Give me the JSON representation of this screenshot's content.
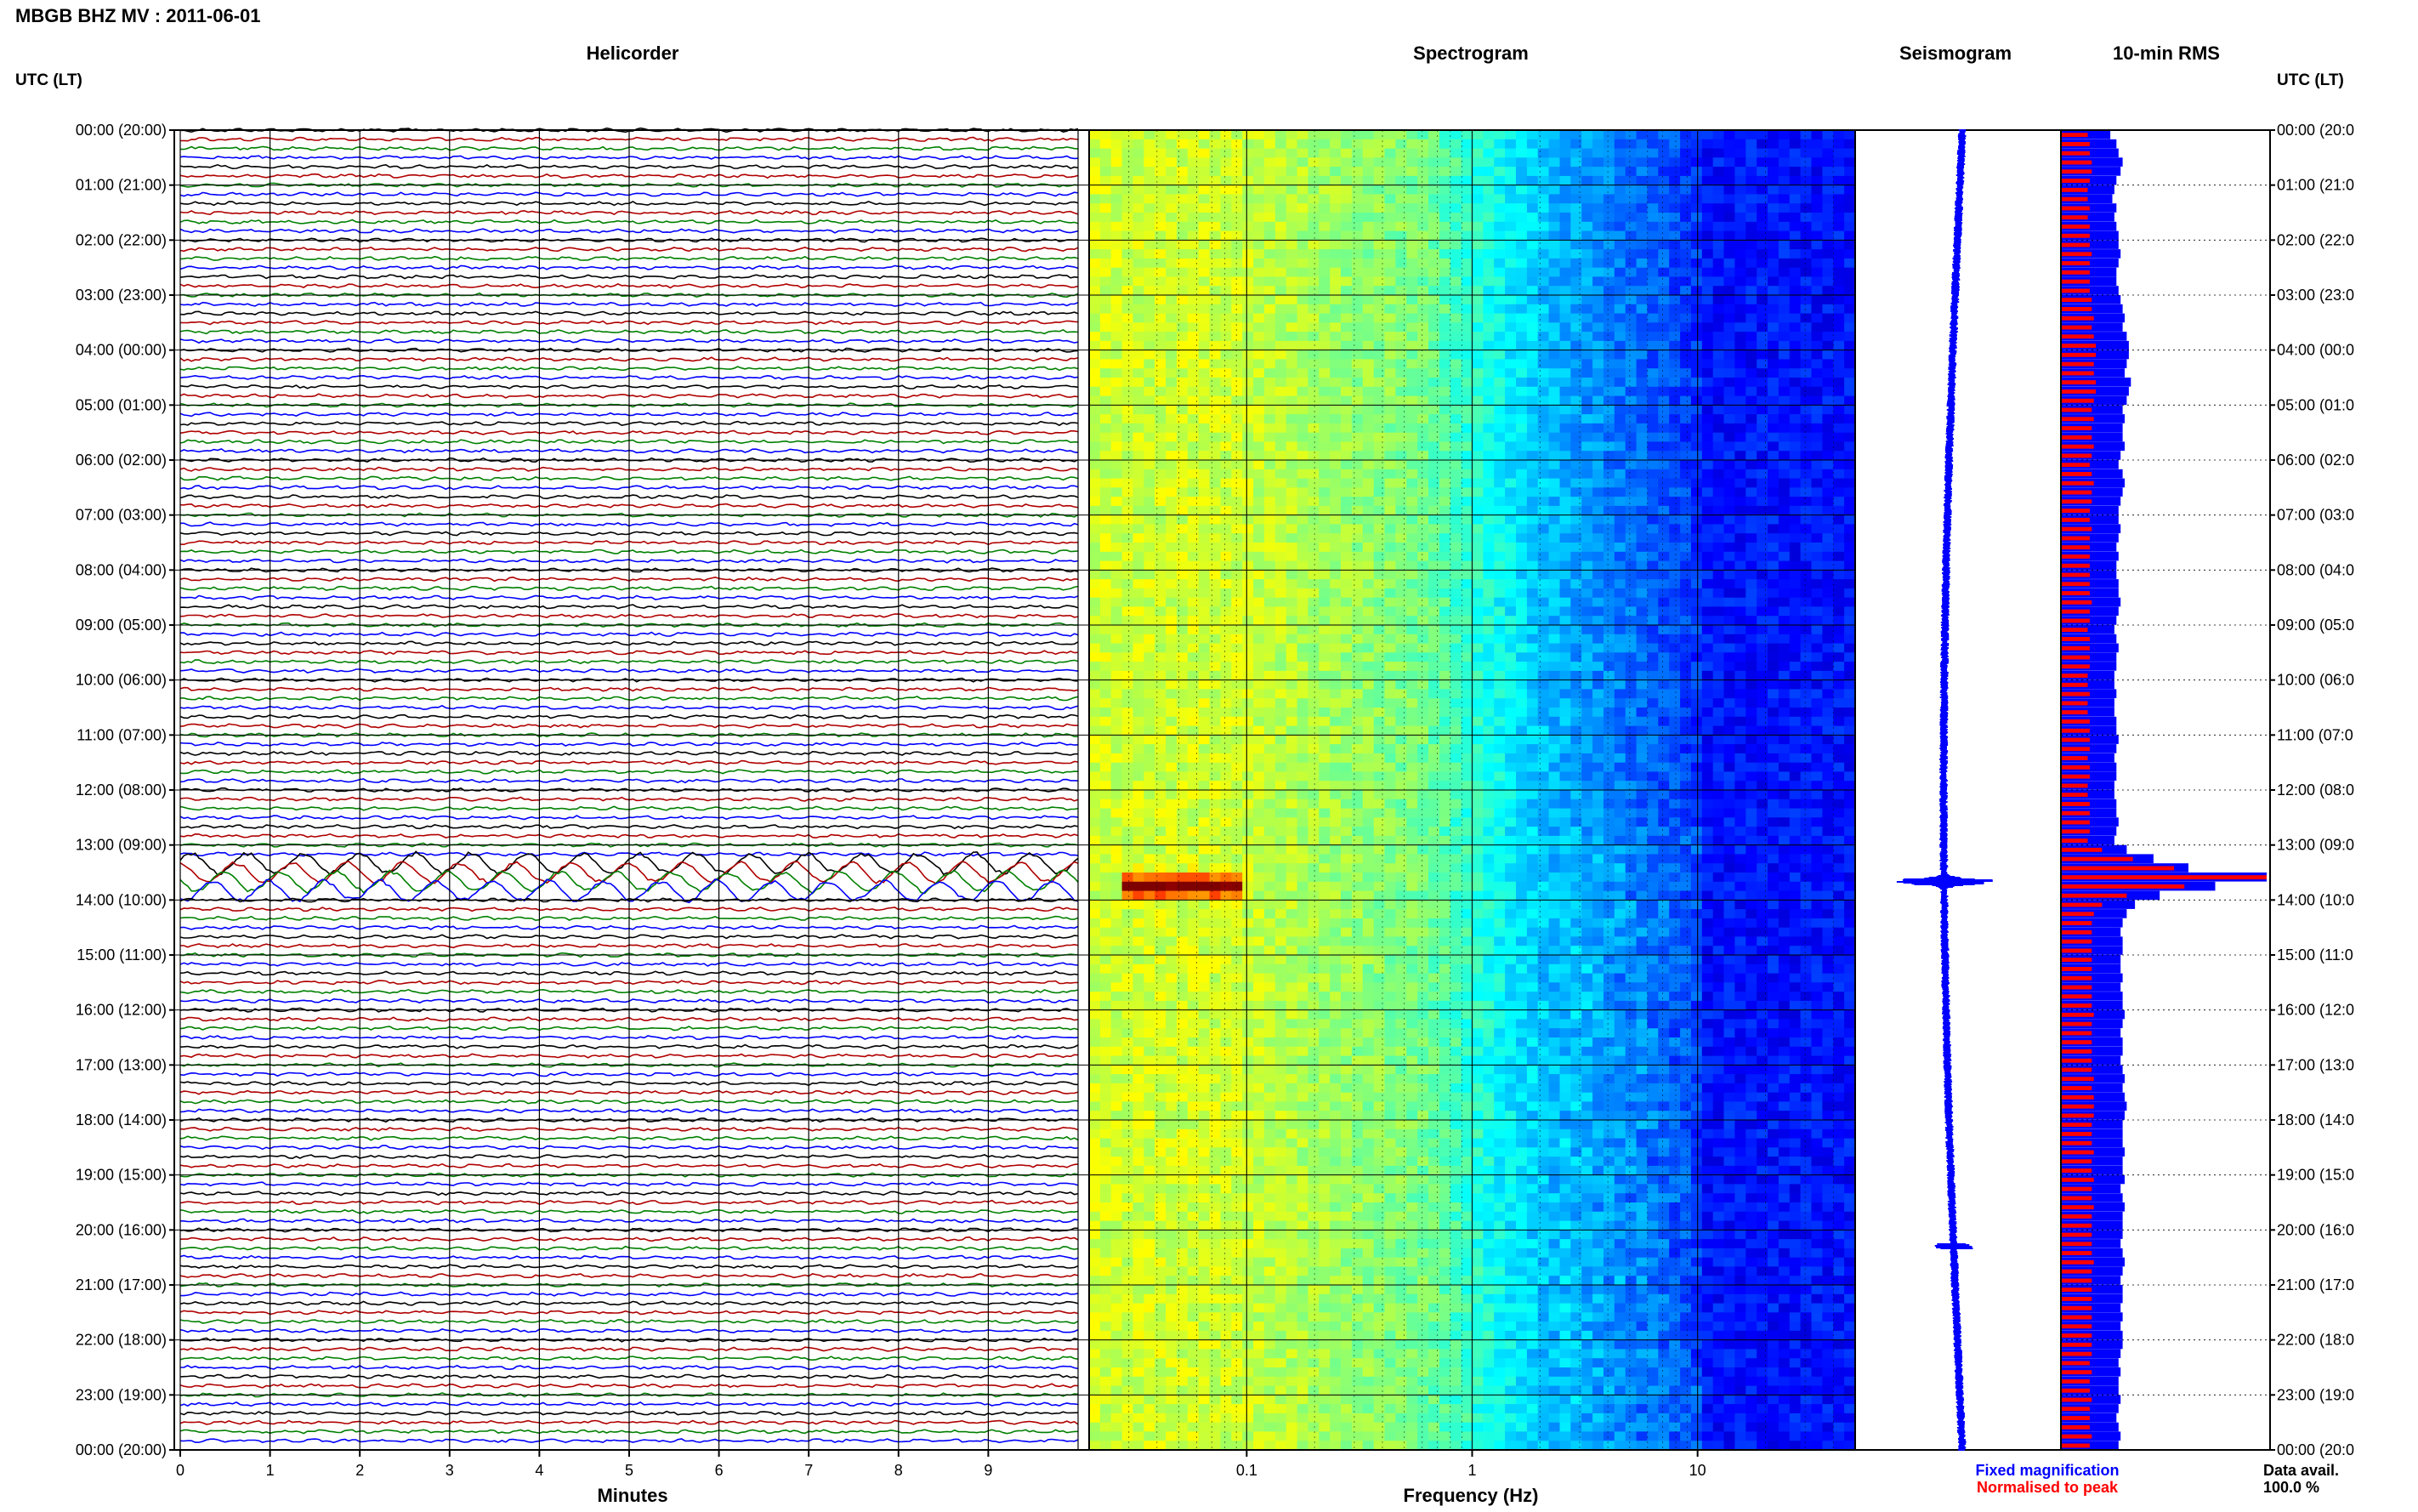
{
  "title": "MBGB BHZ MV : 2011-06-01",
  "panels": {
    "helicorder": "Helicorder",
    "spectrogram": "Spectrogram",
    "seismogram": "Seismogram",
    "rms": "10-min RMS"
  },
  "axis_header_left": "UTC (LT)",
  "axis_header_right": "UTC (LT)",
  "xlabel_helicorder": "Minutes",
  "xlabel_spectrogram": "Frequency (Hz)",
  "legend": {
    "fixed": "Fixed magnification",
    "normalised": "Normalised to peak",
    "fixed_color": "#0000ff",
    "normalised_color": "#ff0000"
  },
  "data_avail_label": "Data avail.",
  "data_avail_value": "100.0 %",
  "chart_data": {
    "type": "helicorder",
    "time_labels": [
      "00:00 (20:00)",
      "01:00 (21:00)",
      "02:00 (22:00)",
      "03:00 (23:00)",
      "04:00 (00:00)",
      "05:00 (01:00)",
      "06:00 (02:00)",
      "07:00 (03:00)",
      "08:00 (04:00)",
      "09:00 (05:00)",
      "10:00 (06:00)",
      "11:00 (07:00)",
      "12:00 (08:00)",
      "13:00 (09:00)",
      "14:00 (10:00)",
      "15:00 (11:00)",
      "16:00 (12:00)",
      "17:00 (13:00)",
      "18:00 (14:00)",
      "19:00 (15:00)",
      "20:00 (16:00)",
      "21:00 (17:00)",
      "22:00 (18:00)",
      "23:00 (19:00)",
      "00:00 (20:00)"
    ],
    "time_labels_right": [
      "00:00 (20:0",
      "01:00 (21:0",
      "02:00 (22:0",
      "03:00 (23:0",
      "04:00 (00:0",
      "05:00 (01:0",
      "06:00 (02:0",
      "07:00 (03:0",
      "08:00 (04:0",
      "09:00 (05:0",
      "10:00 (06:0",
      "11:00 (07:0",
      "12:00 (08:0",
      "13:00 (09:0",
      "14:00 (10:0",
      "15:00 (11:0",
      "16:00 (12:0",
      "17:00 (13:0",
      "18:00 (14:0",
      "19:00 (15:0",
      "20:00 (16:0",
      "21:00 (17:0",
      "22:00 (18:0",
      "23:00 (19:0",
      "00:00 (20:0"
    ],
    "minutes_ticks": [
      "0",
      "1",
      "2",
      "3",
      "4",
      "5",
      "6",
      "7",
      "8",
      "9"
    ],
    "minutes_range": [
      0,
      10
    ],
    "freq_ticks": [
      "0.1",
      "1",
      "10"
    ],
    "freq_range": [
      0.02,
      50
    ],
    "freq_scale": "log",
    "traces_per_hour": 6,
    "trace_colors": [
      "#000000",
      "#b00000",
      "#008000",
      "#0000ff"
    ],
    "hours": 24,
    "event_time_utc": "13:40",
    "rms_series": [
      {
        "name": "Fixed magnification",
        "color": "#0000ff"
      },
      {
        "name": "Normalised to peak",
        "color": "#ff0000"
      }
    ],
    "rms_fixed": [
      0.24,
      0.27,
      0.28,
      0.3,
      0.29,
      0.27,
      0.26,
      0.25,
      0.27,
      0.26,
      0.27,
      0.28,
      0.28,
      0.29,
      0.28,
      0.27,
      0.27,
      0.28,
      0.29,
      0.3,
      0.31,
      0.3,
      0.32,
      0.33,
      0.33,
      0.32,
      0.31,
      0.34,
      0.33,
      0.32,
      0.3,
      0.31,
      0.3,
      0.3,
      0.31,
      0.29,
      0.28,
      0.3,
      0.31,
      0.3,
      0.29,
      0.28,
      0.28,
      0.29,
      0.28,
      0.27,
      0.28,
      0.27,
      0.27,
      0.28,
      0.28,
      0.29,
      0.28,
      0.27,
      0.26,
      0.27,
      0.28,
      0.27,
      0.27,
      0.26,
      0.26,
      0.27,
      0.26,
      0.26,
      0.27,
      0.27,
      0.28,
      0.27,
      0.26,
      0.27,
      0.27,
      0.26,
      0.26,
      0.27,
      0.27,
      0.28,
      0.27,
      0.26,
      0.32,
      0.45,
      0.62,
      1.0,
      0.75,
      0.48,
      0.36,
      0.32,
      0.3,
      0.29,
      0.3,
      0.3,
      0.29,
      0.29,
      0.3,
      0.29,
      0.3,
      0.3,
      0.31,
      0.3,
      0.29,
      0.3,
      0.3,
      0.29,
      0.3,
      0.31,
      0.3,
      0.31,
      0.32,
      0.31,
      0.3,
      0.3,
      0.3,
      0.31,
      0.3,
      0.3,
      0.31,
      0.29,
      0.3,
      0.31,
      0.3,
      0.3,
      0.3,
      0.29,
      0.3,
      0.31,
      0.3,
      0.29,
      0.3,
      0.3,
      0.29,
      0.3,
      0.29,
      0.3,
      0.3,
      0.29,
      0.28,
      0.29,
      0.28,
      0.28,
      0.29,
      0.28,
      0.27,
      0.28,
      0.29,
      0.28
    ],
    "rms_normalised": [
      0.13,
      0.14,
      0.14,
      0.15,
      0.15,
      0.14,
      0.13,
      0.13,
      0.14,
      0.13,
      0.14,
      0.14,
      0.14,
      0.15,
      0.14,
      0.14,
      0.14,
      0.14,
      0.15,
      0.15,
      0.16,
      0.15,
      0.16,
      0.17,
      0.17,
      0.16,
      0.16,
      0.17,
      0.17,
      0.16,
      0.15,
      0.16,
      0.15,
      0.15,
      0.16,
      0.15,
      0.14,
      0.15,
      0.16,
      0.15,
      0.15,
      0.14,
      0.14,
      0.15,
      0.14,
      0.14,
      0.14,
      0.14,
      0.14,
      0.14,
      0.14,
      0.15,
      0.14,
      0.14,
      0.13,
      0.14,
      0.14,
      0.14,
      0.14,
      0.13,
      0.13,
      0.14,
      0.13,
      0.13,
      0.14,
      0.14,
      0.14,
      0.14,
      0.13,
      0.14,
      0.14,
      0.13,
      0.13,
      0.14,
      0.14,
      0.14,
      0.14,
      0.13,
      0.2,
      0.35,
      0.55,
      1.0,
      0.6,
      0.32,
      0.2,
      0.16,
      0.15,
      0.15,
      0.15,
      0.15,
      0.15,
      0.15,
      0.15,
      0.15,
      0.15,
      0.15,
      0.16,
      0.15,
      0.15,
      0.15,
      0.15,
      0.15,
      0.15,
      0.16,
      0.15,
      0.16,
      0.16,
      0.16,
      0.15,
      0.15,
      0.15,
      0.16,
      0.15,
      0.15,
      0.16,
      0.15,
      0.15,
      0.16,
      0.15,
      0.15,
      0.15,
      0.15,
      0.15,
      0.16,
      0.15,
      0.15,
      0.15,
      0.15,
      0.15,
      0.15,
      0.15,
      0.15,
      0.15,
      0.15,
      0.14,
      0.15,
      0.14,
      0.14,
      0.15,
      0.14,
      0.14,
      0.14,
      0.15,
      0.14
    ]
  }
}
